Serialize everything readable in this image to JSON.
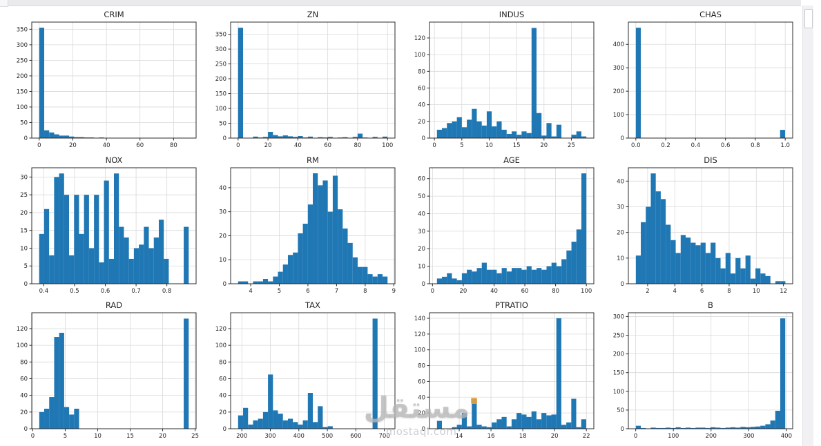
{
  "watermark": {
    "brand": "مستقل",
    "domain": "mostaql.com"
  },
  "colors": {
    "bar": "#1f77b4",
    "grid": "#d9d9d9",
    "axis": "#2b2b2b",
    "watermark_orange": "#f0a33c"
  },
  "chart_data": [
    {
      "type": "bar",
      "title": "CRIM",
      "xlabel": "",
      "ylabel": "",
      "bin_start": 0.006,
      "bin_width": 2.966,
      "values": [
        355,
        25,
        18,
        12,
        8,
        8,
        5,
        3,
        3,
        2,
        2,
        1,
        2,
        1,
        1,
        1,
        0,
        1,
        0,
        1,
        0,
        0,
        1,
        0,
        0,
        0,
        0,
        0,
        0,
        1
      ],
      "xticks": [
        0,
        20,
        40,
        60,
        80
      ],
      "xtick_labels": [
        "0",
        "20",
        "40",
        "60",
        "80"
      ],
      "yticks": [
        0,
        50,
        100,
        150,
        200,
        250,
        300,
        350
      ],
      "xlim": [
        -4.44,
        93.42
      ],
      "ylim": [
        0,
        373
      ],
      "grid": true
    },
    {
      "type": "bar",
      "title": "ZN",
      "xlabel": "",
      "ylabel": "",
      "bin_start": 0,
      "bin_width": 3.333,
      "values": [
        372,
        0,
        0,
        5,
        2,
        4,
        21,
        10,
        6,
        9,
        6,
        4,
        7,
        2,
        5,
        0,
        3,
        2,
        4,
        0,
        2,
        3,
        0,
        4,
        15,
        2,
        1,
        4,
        0,
        5
      ],
      "xticks": [
        0,
        20,
        40,
        60,
        80,
        100
      ],
      "xtick_labels": [
        "0",
        "20",
        "40",
        "60",
        "80",
        "100"
      ],
      "yticks": [
        0,
        50,
        100,
        150,
        200,
        250,
        300,
        350
      ],
      "xlim": [
        -5,
        105
      ],
      "ylim": [
        0,
        391
      ],
      "grid": true
    },
    {
      "type": "bar",
      "title": "INDUS",
      "xlabel": "",
      "ylabel": "",
      "bin_start": 0.46,
      "bin_width": 0.909,
      "values": [
        10,
        12,
        18,
        20,
        25,
        13,
        22,
        35,
        20,
        15,
        32,
        14,
        20,
        10,
        5,
        8,
        4,
        8,
        6,
        132,
        30,
        3,
        18,
        2,
        16,
        0,
        0,
        4,
        8,
        2
      ],
      "xticks": [
        0,
        5,
        10,
        15,
        20,
        25
      ],
      "xtick_labels": [
        "0",
        "5",
        "10",
        "15",
        "20",
        "25"
      ],
      "yticks": [
        0,
        20,
        40,
        60,
        80,
        100,
        120
      ],
      "xlim": [
        -0.9,
        29.1
      ],
      "ylim": [
        0,
        139
      ],
      "grid": true
    },
    {
      "type": "bar",
      "title": "CHAS",
      "xlabel": "",
      "ylabel": "",
      "bin_start": 0,
      "bin_width": 0.0333,
      "values": [
        471,
        0,
        0,
        0,
        0,
        0,
        0,
        0,
        0,
        0,
        0,
        0,
        0,
        0,
        0,
        0,
        0,
        0,
        0,
        0,
        0,
        0,
        0,
        0,
        0,
        0,
        0,
        0,
        0,
        35
      ],
      "xticks": [
        0,
        0.2,
        0.4,
        0.6,
        0.8,
        1.0
      ],
      "xtick_labels": [
        "0.0",
        "0.2",
        "0.4",
        "0.6",
        "0.8",
        "1.0"
      ],
      "yticks": [
        0,
        100,
        200,
        300,
        400
      ],
      "xlim": [
        -0.05,
        1.05
      ],
      "ylim": [
        0,
        495
      ],
      "grid": true
    },
    {
      "type": "bar",
      "title": "NOX",
      "xlabel": "",
      "ylabel": "",
      "bin_start": 0.385,
      "bin_width": 0.0162,
      "values": [
        14,
        21,
        8,
        30,
        31,
        25,
        8,
        25,
        14,
        25,
        10,
        25,
        6,
        29,
        7,
        31,
        16,
        13,
        7,
        10,
        11,
        16,
        10,
        13,
        18,
        7,
        0,
        0,
        0,
        16
      ],
      "xticks": [
        0.4,
        0.5,
        0.6,
        0.7,
        0.8
      ],
      "xtick_labels": [
        "0.4",
        "0.5",
        "0.6",
        "0.7",
        "0.8"
      ],
      "yticks": [
        0,
        5,
        10,
        15,
        20,
        25,
        30
      ],
      "xlim": [
        0.361,
        0.895
      ],
      "ylim": [
        0,
        32.6
      ],
      "grid": true
    },
    {
      "type": "bar",
      "title": "RM",
      "xlabel": "",
      "ylabel": "",
      "bin_start": 3.561,
      "bin_width": 0.174,
      "values": [
        1,
        1,
        0,
        1,
        1,
        2,
        1,
        3,
        5,
        8,
        12,
        13,
        21,
        25,
        33,
        46,
        41,
        43,
        30,
        45,
        31,
        23,
        17,
        11,
        7,
        7,
        4,
        3,
        4,
        3
      ],
      "xticks": [
        4,
        5,
        6,
        7,
        8,
        9
      ],
      "xtick_labels": [
        "4",
        "5",
        "6",
        "7",
        "8",
        "9"
      ],
      "yticks": [
        0,
        10,
        20,
        30,
        40
      ],
      "xlim": [
        3.3,
        9.04
      ],
      "ylim": [
        0,
        48.3
      ],
      "grid": true
    },
    {
      "type": "bar",
      "title": "AGE",
      "xlabel": "",
      "ylabel": "",
      "bin_start": 2.9,
      "bin_width": 3.237,
      "values": [
        3,
        4,
        6,
        3,
        2,
        6,
        8,
        7,
        9,
        12,
        8,
        8,
        6,
        9,
        7,
        9,
        9,
        8,
        10,
        8,
        9,
        8,
        10,
        12,
        10,
        14,
        19,
        24,
        31,
        63
      ],
      "xticks": [
        0,
        20,
        40,
        60,
        80,
        100
      ],
      "xtick_labels": [
        "0",
        "20",
        "40",
        "60",
        "80",
        "100"
      ],
      "yticks": [
        0,
        10,
        20,
        30,
        40,
        50,
        60
      ],
      "xlim": [
        -1.96,
        104.86
      ],
      "ylim": [
        0,
        66.2
      ],
      "grid": true
    },
    {
      "type": "bar",
      "title": "DIS",
      "xlabel": "",
      "ylabel": "",
      "bin_start": 1.13,
      "bin_width": 0.367,
      "values": [
        11,
        24,
        30,
        43,
        36,
        33,
        23,
        17,
        12,
        19,
        18,
        16,
        15,
        16,
        12,
        16,
        10,
        6,
        12,
        4,
        10,
        6,
        11,
        2,
        6,
        4,
        3,
        0,
        1,
        1
      ],
      "xticks": [
        2,
        4,
        6,
        8,
        10,
        12
      ],
      "xtick_labels": [
        "2",
        "4",
        "6",
        "8",
        "10",
        "12"
      ],
      "yticks": [
        0,
        10,
        20,
        30,
        40
      ],
      "xlim": [
        0.58,
        12.68
      ],
      "ylim": [
        0,
        45.2
      ],
      "grid": true
    },
    {
      "type": "bar",
      "title": "RAD",
      "xlabel": "",
      "ylabel": "",
      "bin_start": 1,
      "bin_width": 0.767,
      "values": [
        20,
        24,
        38,
        110,
        115,
        26,
        17,
        24,
        0,
        0,
        0,
        0,
        0,
        0,
        0,
        0,
        0,
        0,
        0,
        0,
        0,
        0,
        0,
        0,
        0,
        0,
        0,
        0,
        0,
        132
      ],
      "xticks": [
        0,
        5,
        10,
        15,
        20,
        25
      ],
      "xtick_labels": [
        "0",
        "5",
        "10",
        "15",
        "20",
        "25"
      ],
      "yticks": [
        0,
        20,
        40,
        60,
        80,
        100,
        120
      ],
      "xlim": [
        -0.15,
        25.15
      ],
      "ylim": [
        0,
        139
      ],
      "grid": true
    },
    {
      "type": "bar",
      "title": "TAX",
      "xlabel": "",
      "ylabel": "",
      "bin_start": 187,
      "bin_width": 17.47,
      "values": [
        16,
        25,
        5,
        10,
        12,
        20,
        65,
        22,
        18,
        10,
        12,
        8,
        5,
        10,
        43,
        8,
        27,
        2,
        3,
        0,
        0,
        0,
        0,
        0,
        0,
        0,
        0,
        132,
        0,
        0
      ],
      "xticks": [
        200,
        300,
        400,
        500,
        600,
        700
      ],
      "xtick_labels": [
        "200",
        "300",
        "400",
        "500",
        "600",
        "700"
      ],
      "yticks": [
        0,
        20,
        40,
        60,
        80,
        100,
        120
      ],
      "xlim": [
        160.8,
        737.2
      ],
      "ylim": [
        0,
        139
      ],
      "grid": true
    },
    {
      "type": "bar",
      "title": "PTRATIO",
      "xlabel": "",
      "ylabel": "",
      "bin_start": 12.6,
      "bin_width": 0.313,
      "values": [
        10,
        0,
        0,
        2,
        5,
        20,
        3,
        38,
        5,
        3,
        2,
        8,
        12,
        15,
        3,
        12,
        20,
        18,
        15,
        22,
        12,
        20,
        17,
        18,
        140,
        5,
        8,
        38,
        2,
        12
      ],
      "xticks": [
        14,
        16,
        18,
        20,
        22
      ],
      "xtick_labels": [
        "14",
        "16",
        "18",
        "20",
        "22"
      ],
      "yticks": [
        0,
        20,
        40,
        60,
        80,
        100,
        120,
        140
      ],
      "xlim": [
        12.13,
        22.47
      ],
      "ylim": [
        0,
        147
      ],
      "grid": true
    },
    {
      "type": "bar",
      "title": "B",
      "xlabel": "",
      "ylabel": "",
      "bin_start": 0.32,
      "bin_width": 13.22,
      "values": [
        8,
        2,
        1,
        3,
        2,
        2,
        3,
        2,
        4,
        2,
        3,
        2,
        3,
        3,
        2,
        4,
        3,
        2,
        3,
        4,
        3,
        5,
        4,
        5,
        6,
        8,
        12,
        22,
        48,
        295
      ],
      "xticks": [
        0,
        100,
        200,
        300,
        400
      ],
      "xtick_labels": [
        "0",
        "100",
        "200",
        "300",
        "400"
      ],
      "yticks": [
        0,
        50,
        100,
        150,
        200,
        250,
        300
      ],
      "xlim": [
        -19.5,
        416.7
      ],
      "ylim": [
        0,
        310
      ],
      "grid": true
    }
  ]
}
